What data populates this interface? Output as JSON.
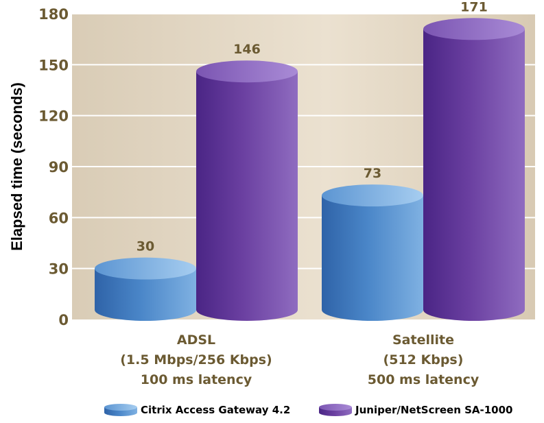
{
  "chart_data": {
    "type": "bar",
    "title": "",
    "xlabel": "",
    "ylabel": "Elapsed time (seconds)",
    "ylim": [
      0,
      180
    ],
    "yticks": [
      0,
      30,
      60,
      90,
      120,
      150,
      180
    ],
    "grid": true,
    "legend_position": "bottom",
    "categories": [
      [
        "ADSL",
        "(1.5 Mbps/256 Kbps)",
        "100 ms latency"
      ],
      [
        "Satellite",
        "(512 Kbps)",
        "500 ms latency"
      ]
    ],
    "series": [
      {
        "name": "Citrix Access Gateway 4.2",
        "values": [
          30,
          73
        ],
        "color": "#4a86c8"
      },
      {
        "name": "Juniper/NetScreen SA-1000",
        "values": [
          146,
          171
        ],
        "color": "#6a3fa0"
      }
    ],
    "colors": {
      "plot_background": "#e3d7c4",
      "gridline": "#ffffff",
      "label_text": "#6b5a32"
    }
  }
}
